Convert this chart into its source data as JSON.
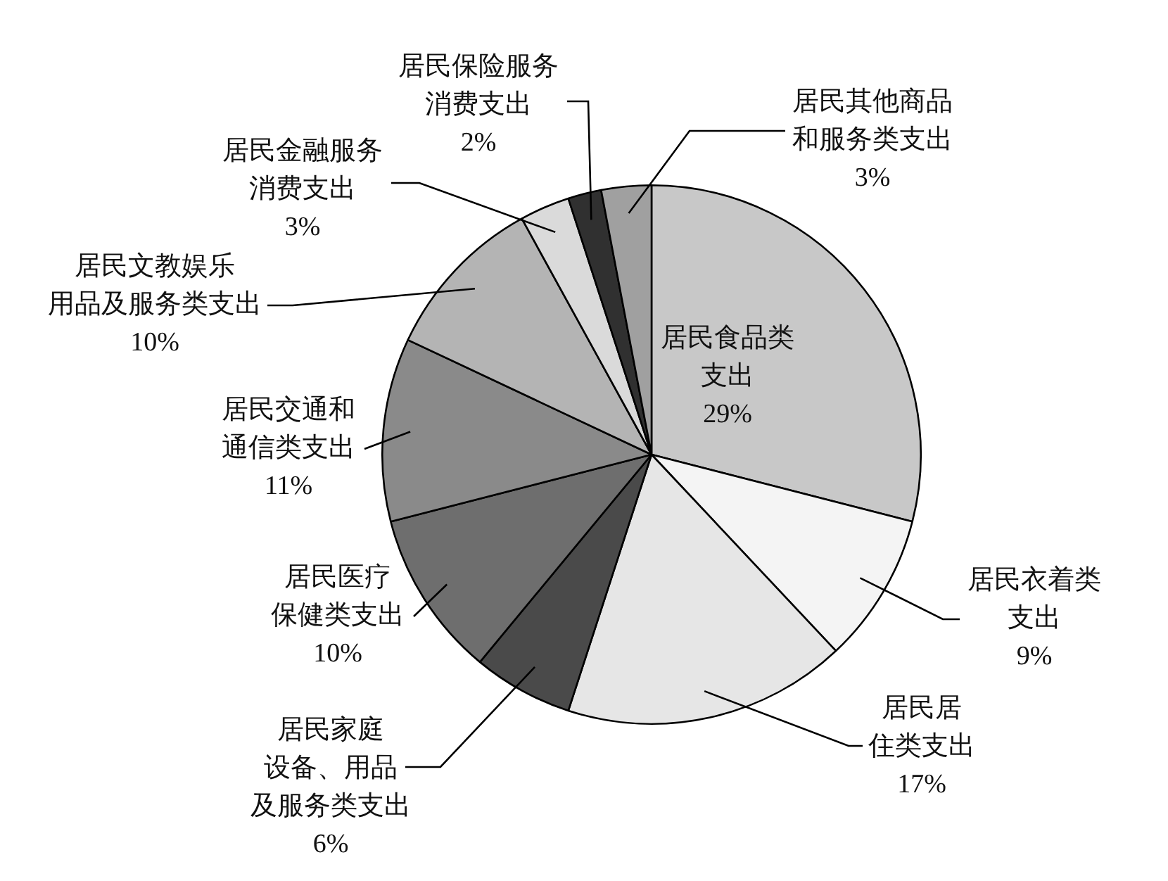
{
  "chart_data": {
    "type": "pie",
    "categories": [
      "居民食品类支出",
      "居民衣着类支出",
      "居民居住类支出",
      "居民家庭设备、用品及服务类支出",
      "居民医疗保健类支出",
      "居民交通和通信类支出",
      "居民文教娱乐用品及服务类支出",
      "居民金融服务消费支出",
      "居民保险服务消费支出",
      "居民其他商品和服务类支出"
    ],
    "values": [
      29,
      9,
      17,
      6,
      10,
      11,
      10,
      3,
      2,
      3
    ],
    "value_labels": [
      "29%",
      "9%",
      "17%",
      "6%",
      "10%",
      "11%",
      "10%",
      "3%",
      "2%",
      "3%"
    ],
    "colors": [
      "#c8c8c8",
      "#f4f4f4",
      "#e6e6e6",
      "#4a4a4a",
      "#6e6e6e",
      "#8a8a8a",
      "#b4b4b4",
      "#dadada",
      "#303030",
      "#a0a0a0"
    ]
  }
}
